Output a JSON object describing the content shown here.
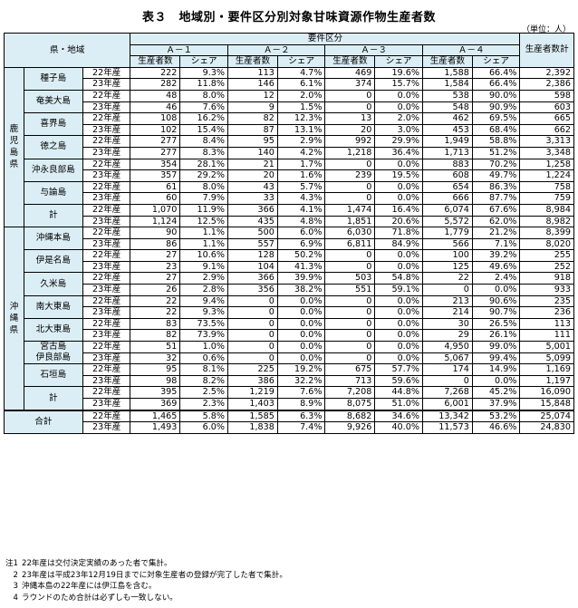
{
  "title": "表３　地域別・要件区分別対象甘味資源作物生産者数",
  "unit": "（単位：人）",
  "header": {
    "region": "県・地域",
    "group": "要件区分",
    "categories": [
      "Ａ－１",
      "Ａ－２",
      "Ａ－３",
      "Ａ－４"
    ],
    "producers": "生産者数",
    "share": "シェア",
    "total": "生産者数計"
  },
  "groups": [
    {
      "pref": [
        "鹿",
        "児",
        "島",
        "県"
      ],
      "regions": [
        {
          "name": "種子島",
          "rows": [
            {
              "year": "22年産",
              "v": [
                "222",
                "9.3%",
                "113",
                "4.7%",
                "469",
                "19.6%",
                "1,588",
                "66.4%",
                "2,392"
              ]
            },
            {
              "year": "23年産",
              "v": [
                "282",
                "11.8%",
                "146",
                "6.1%",
                "374",
                "15.7%",
                "1,584",
                "66.4%",
                "2,386"
              ]
            }
          ]
        },
        {
          "name": "奄美大島",
          "rows": [
            {
              "year": "22年産",
              "v": [
                "48",
                "8.0%",
                "12",
                "2.0%",
                "0",
                "0.0%",
                "538",
                "90.0%",
                "598"
              ]
            },
            {
              "year": "23年産",
              "v": [
                "46",
                "7.6%",
                "9",
                "1.5%",
                "0",
                "0.0%",
                "548",
                "90.9%",
                "603"
              ]
            }
          ]
        },
        {
          "name": "喜界島",
          "rows": [
            {
              "year": "22年産",
              "v": [
                "108",
                "16.2%",
                "82",
                "12.3%",
                "13",
                "2.0%",
                "462",
                "69.5%",
                "665"
              ]
            },
            {
              "year": "23年産",
              "v": [
                "102",
                "15.4%",
                "87",
                "13.1%",
                "20",
                "3.0%",
                "453",
                "68.4%",
                "662"
              ]
            }
          ]
        },
        {
          "name": "徳之島",
          "rows": [
            {
              "year": "22年産",
              "v": [
                "277",
                "8.4%",
                "95",
                "2.9%",
                "992",
                "29.9%",
                "1,949",
                "58.8%",
                "3,313"
              ]
            },
            {
              "year": "23年産",
              "v": [
                "277",
                "8.3%",
                "140",
                "4.2%",
                "1,218",
                "36.4%",
                "1,713",
                "51.2%",
                "3,348"
              ]
            }
          ]
        },
        {
          "name": "沖永良部島",
          "rows": [
            {
              "year": "22年産",
              "v": [
                "354",
                "28.1%",
                "21",
                "1.7%",
                "0",
                "0.0%",
                "883",
                "70.2%",
                "1,258"
              ]
            },
            {
              "year": "23年産",
              "v": [
                "357",
                "29.2%",
                "20",
                "1.6%",
                "239",
                "19.5%",
                "608",
                "49.7%",
                "1,224"
              ]
            }
          ]
        },
        {
          "name": "与論島",
          "rows": [
            {
              "year": "22年産",
              "v": [
                "61",
                "8.0%",
                "43",
                "5.7%",
                "0",
                "0.0%",
                "654",
                "86.3%",
                "758"
              ]
            },
            {
              "year": "23年産",
              "v": [
                "60",
                "7.9%",
                "33",
                "4.3%",
                "0",
                "0.0%",
                "666",
                "87.7%",
                "759"
              ]
            }
          ]
        },
        {
          "name": "計",
          "rows": [
            {
              "year": "22年産",
              "v": [
                "1,070",
                "11.9%",
                "366",
                "4.1%",
                "1,474",
                "16.4%",
                "6,074",
                "67.6%",
                "8,984"
              ]
            },
            {
              "year": "23年産",
              "v": [
                "1,124",
                "12.5%",
                "435",
                "4.8%",
                "1,851",
                "20.6%",
                "5,572",
                "62.0%",
                "8,982"
              ]
            }
          ]
        }
      ]
    },
    {
      "pref": [
        "沖",
        "縄",
        "県"
      ],
      "regions": [
        {
          "name": "沖縄本島",
          "rows": [
            {
              "year": "22年産",
              "v": [
                "90",
                "1.1%",
                "500",
                "6.0%",
                "6,030",
                "71.8%",
                "1,779",
                "21.2%",
                "8,399"
              ]
            },
            {
              "year": "23年産",
              "v": [
                "86",
                "1.1%",
                "557",
                "6.9%",
                "6,811",
                "84.9%",
                "566",
                "7.1%",
                "8,020"
              ]
            }
          ]
        },
        {
          "name": "伊是名島",
          "rows": [
            {
              "year": "22年産",
              "v": [
                "27",
                "10.6%",
                "128",
                "50.2%",
                "0",
                "0.0%",
                "100",
                "39.2%",
                "255"
              ]
            },
            {
              "year": "23年産",
              "v": [
                "23",
                "9.1%",
                "104",
                "41.3%",
                "0",
                "0.0%",
                "125",
                "49.6%",
                "252"
              ]
            }
          ]
        },
        {
          "name": "久米島",
          "rows": [
            {
              "year": "22年産",
              "v": [
                "27",
                "2.9%",
                "366",
                "39.9%",
                "503",
                "54.8%",
                "22",
                "2.4%",
                "918"
              ]
            },
            {
              "year": "23年産",
              "v": [
                "26",
                "2.8%",
                "356",
                "38.2%",
                "551",
                "59.1%",
                "0",
                "0.0%",
                "933"
              ]
            }
          ]
        },
        {
          "name": "南大東島",
          "rows": [
            {
              "year": "22年産",
              "v": [
                "22",
                "9.4%",
                "0",
                "0.0%",
                "0",
                "0.0%",
                "213",
                "90.6%",
                "235"
              ]
            },
            {
              "year": "23年産",
              "v": [
                "22",
                "9.3%",
                "0",
                "0.0%",
                "0",
                "0.0%",
                "214",
                "90.7%",
                "236"
              ]
            }
          ]
        },
        {
          "name": "北大東島",
          "rows": [
            {
              "year": "22年産",
              "v": [
                "83",
                "73.5%",
                "0",
                "0.0%",
                "0",
                "0.0%",
                "30",
                "26.5%",
                "113"
              ]
            },
            {
              "year": "23年産",
              "v": [
                "82",
                "73.9%",
                "0",
                "0.0%",
                "0",
                "0.0%",
                "29",
                "26.1%",
                "111"
              ]
            }
          ]
        },
        {
          "name": "宮古島\n伊良部島",
          "rows": [
            {
              "year": "22年産",
              "v": [
                "51",
                "1.0%",
                "0",
                "0.0%",
                "0",
                "0.0%",
                "4,950",
                "99.0%",
                "5,001"
              ]
            },
            {
              "year": "23年産",
              "v": [
                "32",
                "0.6%",
                "0",
                "0.0%",
                "0",
                "0.0%",
                "5,067",
                "99.4%",
                "5,099"
              ]
            }
          ]
        },
        {
          "name": "石垣島",
          "rows": [
            {
              "year": "22年産",
              "v": [
                "95",
                "8.1%",
                "225",
                "19.2%",
                "675",
                "57.7%",
                "174",
                "14.9%",
                "1,169"
              ]
            },
            {
              "year": "23年産",
              "v": [
                "98",
                "8.2%",
                "386",
                "32.2%",
                "713",
                "59.6%",
                "0",
                "0.0%",
                "1,197"
              ]
            }
          ]
        },
        {
          "name": "計",
          "rows": [
            {
              "year": "22年産",
              "v": [
                "395",
                "2.5%",
                "1,219",
                "7.6%",
                "7,208",
                "44.8%",
                "7,268",
                "45.2%",
                "16,090"
              ]
            },
            {
              "year": "23年産",
              "v": [
                "369",
                "2.3%",
                "1,403",
                "8.9%",
                "8,075",
                "51.0%",
                "6,001",
                "37.9%",
                "15,848"
              ]
            }
          ]
        }
      ]
    }
  ],
  "total": {
    "name": "合計",
    "rows": [
      {
        "year": "22年産",
        "v": [
          "1,465",
          "5.8%",
          "1,585",
          "6.3%",
          "8,682",
          "34.6%",
          "13,342",
          "53.2%",
          "25,074"
        ]
      },
      {
        "year": "23年産",
        "v": [
          "1,493",
          "6.0%",
          "1,838",
          "7.4%",
          "9,926",
          "40.0%",
          "11,573",
          "46.6%",
          "24,830"
        ]
      }
    ]
  },
  "notes": [
    {
      "k": "注1",
      "t": "22年産は交付決定実績のあった者で集計。"
    },
    {
      "k": "2",
      "t": "23年産は平成23年12月19日までに対象生産者の登録が完了した者で集計。"
    },
    {
      "k": "3",
      "t": "沖縄本島の22年産には伊江島を含む。"
    },
    {
      "k": "4",
      "t": "ラウンドのため合計は必ずしも一致しない。"
    }
  ]
}
